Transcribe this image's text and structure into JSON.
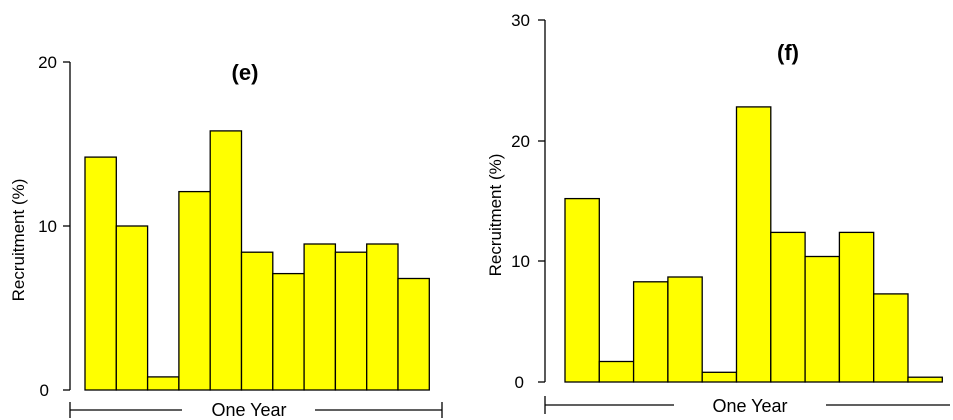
{
  "chart_data": [
    {
      "type": "bar",
      "title": "(e)",
      "ylabel": "Recruitment (%)",
      "ylim": [
        0,
        20
      ],
      "yticks": [
        "0",
        "10",
        "20"
      ],
      "values": [
        14.2,
        10.0,
        0.8,
        12.1,
        15.8,
        8.4,
        7.1,
        8.9,
        8.4,
        8.9,
        6.8
      ],
      "span_label": "One Year",
      "bar_color": "#ffff00"
    },
    {
      "type": "bar",
      "title": "(f)",
      "ylabel": "Recruitment (%)",
      "ylim": [
        0,
        30
      ],
      "yticks": [
        "0",
        "10",
        "20",
        "30"
      ],
      "values": [
        15.2,
        1.7,
        8.3,
        8.7,
        0.8,
        22.8,
        12.4,
        10.4,
        12.4,
        7.3,
        0.4
      ],
      "span_label": "One Year",
      "bar_color": "#ffff00"
    }
  ]
}
